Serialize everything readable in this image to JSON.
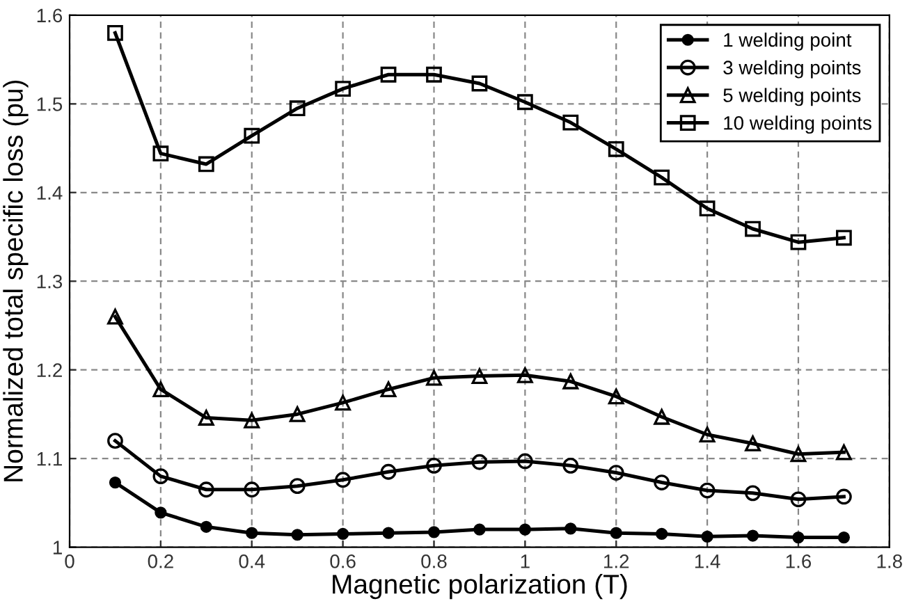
{
  "chart_data": {
    "type": "line",
    "xlabel": "Magnetic polarization (T)",
    "ylabel": "Normalized total specific loss (pu)",
    "x": [
      0.1,
      0.2,
      0.3,
      0.4,
      0.5,
      0.6,
      0.7,
      0.8,
      0.9,
      1.0,
      1.1,
      1.2,
      1.3,
      1.4,
      1.5,
      1.6,
      1.7
    ],
    "series": [
      {
        "name": "1 welding point",
        "color": "#000000",
        "marker": "circle",
        "values": [
          1.073,
          1.039,
          1.023,
          1.016,
          1.014,
          1.015,
          1.016,
          1.017,
          1.02,
          1.02,
          1.021,
          1.016,
          1.015,
          1.012,
          1.013,
          1.011,
          1.011
        ]
      },
      {
        "name": "3 welding points",
        "color": "#000000",
        "marker": "circle",
        "values": [
          1.12,
          1.08,
          1.065,
          1.065,
          1.069,
          1.076,
          1.085,
          1.092,
          1.096,
          1.097,
          1.092,
          1.084,
          1.073,
          1.064,
          1.061,
          1.054,
          1.057
        ]
      },
      {
        "name": "5 welding points",
        "color": "#000000",
        "marker": "triangle",
        "values": [
          1.26,
          1.178,
          1.146,
          1.143,
          1.15,
          1.163,
          1.178,
          1.191,
          1.193,
          1.194,
          1.187,
          1.17,
          1.147,
          1.127,
          1.117,
          1.105,
          1.107
        ]
      },
      {
        "name": "10 welding points",
        "color": "#000000",
        "marker": "square",
        "values": [
          1.58,
          1.444,
          1.432,
          1.464,
          1.495,
          1.517,
          1.533,
          1.533,
          1.523,
          1.502,
          1.479,
          1.449,
          1.417,
          1.382,
          1.359,
          1.344,
          1.349
        ]
      }
    ],
    "xlim": [
      0,
      1.8
    ],
    "xticks": [
      0,
      0.2,
      0.4,
      0.6,
      0.8,
      1,
      1.2,
      1.4,
      1.6,
      1.8
    ],
    "ylim": [
      1,
      1.6
    ],
    "yticks": [
      1,
      1.1,
      1.2,
      1.3,
      1.4,
      1.5,
      1.6
    ],
    "grid": true,
    "legend": "top right",
    "line_style": "solid"
  }
}
